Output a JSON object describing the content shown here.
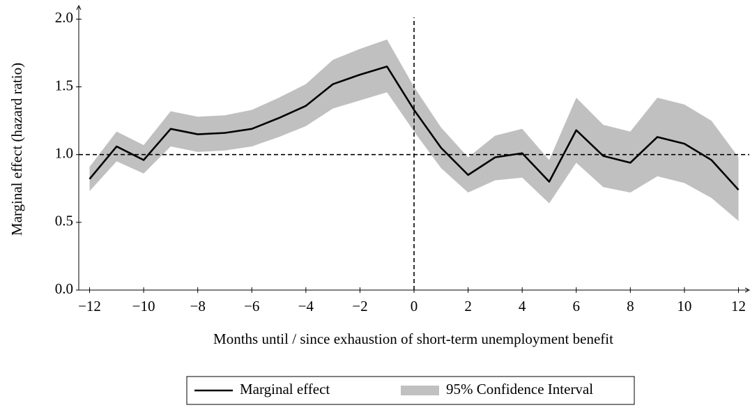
{
  "chart_data": {
    "type": "line",
    "xlabel": "Months until / since exhaustion of short-term unemployment benefit",
    "ylabel": "Marginal effect (hazard ratio)",
    "x": [
      -12,
      -11,
      -10,
      -9,
      -8,
      -7,
      -6,
      -5,
      -4,
      -3,
      -2,
      -1,
      0,
      1,
      2,
      3,
      4,
      5,
      6,
      7,
      8,
      9,
      10,
      11,
      12
    ],
    "series": [
      {
        "name": "Marginal effect",
        "color": "#000000",
        "values": [
          0.82,
          1.06,
          0.96,
          1.19,
          1.15,
          1.16,
          1.19,
          1.27,
          1.36,
          1.52,
          1.59,
          1.65,
          1.33,
          1.05,
          0.85,
          0.98,
          1.01,
          0.8,
          1.18,
          0.99,
          0.94,
          1.13,
          1.08,
          0.96,
          0.74
        ]
      },
      {
        "name": "95% Confidence Interval",
        "color": "#c0c0c0",
        "lower": [
          0.73,
          0.95,
          0.86,
          1.06,
          1.02,
          1.03,
          1.06,
          1.13,
          1.21,
          1.34,
          1.4,
          1.46,
          1.17,
          0.9,
          0.72,
          0.81,
          0.83,
          0.64,
          0.94,
          0.76,
          0.72,
          0.84,
          0.79,
          0.68,
          0.51
        ],
        "upper": [
          0.91,
          1.17,
          1.07,
          1.32,
          1.28,
          1.29,
          1.33,
          1.42,
          1.52,
          1.7,
          1.78,
          1.85,
          1.5,
          1.2,
          0.98,
          1.14,
          1.19,
          0.96,
          1.42,
          1.22,
          1.17,
          1.42,
          1.37,
          1.25,
          0.98
        ]
      }
    ],
    "xlim": [
      -12.4,
      12.4
    ],
    "ylim": [
      0,
      2.1
    ],
    "xticks": [
      {
        "value": -12,
        "label": "−12"
      },
      {
        "value": -10,
        "label": "−10"
      },
      {
        "value": -8,
        "label": "−8"
      },
      {
        "value": -6,
        "label": "−6"
      },
      {
        "value": -4,
        "label": "−4"
      },
      {
        "value": -2,
        "label": "−2"
      },
      0,
      2,
      4,
      6,
      8,
      10,
      12
    ],
    "yticks": [
      {
        "value": 0,
        "label": "0.0"
      },
      0.5,
      {
        "value": 1,
        "label": "1.0"
      },
      1.5,
      {
        "value": 2,
        "label": "2.0"
      }
    ],
    "hline": 1,
    "vline": 0,
    "legend": "bottom"
  }
}
